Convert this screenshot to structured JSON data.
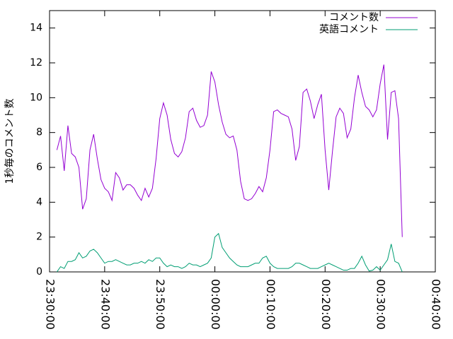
{
  "chart_data": {
    "type": "line",
    "ylabel": "1秒毎のコメント数",
    "x": [
      "23:31:20",
      "23:32:00",
      "23:32:40",
      "23:33:20",
      "23:34:00",
      "23:34:40",
      "23:35:20",
      "23:36:00",
      "23:36:40",
      "23:37:20",
      "23:38:00",
      "23:38:40",
      "23:39:20",
      "23:40:00",
      "23:40:40",
      "23:41:20",
      "23:42:00",
      "23:42:40",
      "23:43:20",
      "23:44:00",
      "23:44:40",
      "23:45:20",
      "23:46:00",
      "23:46:40",
      "23:47:20",
      "23:48:00",
      "23:48:40",
      "23:49:20",
      "23:50:00",
      "23:50:40",
      "23:51:20",
      "23:52:00",
      "23:52:40",
      "23:53:20",
      "23:54:00",
      "23:54:40",
      "23:55:20",
      "23:56:00",
      "23:56:40",
      "23:57:20",
      "23:58:00",
      "23:58:40",
      "23:59:20",
      "00:00:00",
      "00:00:40",
      "00:01:20",
      "00:02:00",
      "00:02:40",
      "00:03:20",
      "00:04:00",
      "00:04:40",
      "00:05:20",
      "00:06:00",
      "00:06:40",
      "00:07:20",
      "00:08:00",
      "00:08:40",
      "00:09:20",
      "00:10:00",
      "00:10:40",
      "00:11:20",
      "00:12:00",
      "00:12:40",
      "00:13:20",
      "00:14:00",
      "00:14:40",
      "00:15:20",
      "00:16:00",
      "00:16:40",
      "00:17:20",
      "00:18:00",
      "00:18:40",
      "00:19:20",
      "00:20:00",
      "00:20:40",
      "00:21:20",
      "00:22:00",
      "00:22:40",
      "00:23:20",
      "00:24:00",
      "00:24:40",
      "00:25:20",
      "00:26:00",
      "00:26:40",
      "00:27:20",
      "00:28:00",
      "00:28:40",
      "00:29:20",
      "00:30:00",
      "00:30:40",
      "00:31:20",
      "00:32:00",
      "00:32:40",
      "00:33:20",
      "00:34:00"
    ],
    "series": [
      {
        "name": "コメント数",
        "color": "#9400d3",
        "values": [
          7.0,
          7.8,
          5.8,
          8.4,
          6.8,
          6.6,
          6.0,
          3.6,
          4.2,
          7.0,
          7.9,
          6.5,
          5.3,
          4.8,
          4.6,
          4.1,
          5.7,
          5.4,
          4.7,
          5.0,
          5.0,
          4.8,
          4.4,
          4.1,
          4.8,
          4.3,
          4.8,
          6.5,
          8.8,
          9.7,
          9.0,
          7.6,
          6.8,
          6.6,
          6.9,
          7.7,
          9.2,
          9.4,
          8.7,
          8.3,
          8.4,
          9.0,
          11.5,
          10.9,
          9.6,
          8.6,
          7.9,
          7.7,
          7.8,
          7.0,
          5.2,
          4.2,
          4.1,
          4.2,
          4.5,
          4.9,
          4.6,
          5.4,
          7.0,
          9.2,
          9.3,
          9.1,
          9.0,
          8.9,
          8.2,
          6.4,
          7.2,
          10.3,
          10.5,
          9.8,
          8.8,
          9.6,
          10.2,
          7.0,
          4.7,
          6.9,
          8.9,
          9.4,
          9.1,
          7.7,
          8.2,
          10.0,
          11.3,
          10.3,
          9.5,
          9.3,
          8.9,
          9.3,
          10.8,
          11.9,
          7.6,
          10.3,
          10.4,
          8.8,
          2.0
        ]
      },
      {
        "name": "英語コメント",
        "color": "#009e73",
        "values": [
          0,
          0.3,
          0.2,
          0.6,
          0.6,
          0.7,
          1.1,
          0.8,
          0.9,
          1.2,
          1.3,
          1.1,
          0.8,
          0.5,
          0.6,
          0.6,
          0.7,
          0.6,
          0.5,
          0.4,
          0.4,
          0.5,
          0.5,
          0.6,
          0.5,
          0.7,
          0.6,
          0.8,
          0.8,
          0.5,
          0.3,
          0.4,
          0.3,
          0.3,
          0.2,
          0.3,
          0.5,
          0.4,
          0.4,
          0.3,
          0.4,
          0.5,
          0.8,
          2.0,
          2.2,
          1.4,
          1.1,
          0.8,
          0.6,
          0.4,
          0.3,
          0.3,
          0.3,
          0.4,
          0.5,
          0.5,
          0.8,
          0.9,
          0.5,
          0.3,
          0.2,
          0.2,
          0.2,
          0.2,
          0.3,
          0.5,
          0.5,
          0.4,
          0.3,
          0.2,
          0.2,
          0.2,
          0.3,
          0.4,
          0.5,
          0.4,
          0.3,
          0.2,
          0.1,
          0.1,
          0.2,
          0.2,
          0.5,
          0.9,
          0.4,
          0.05,
          0.1,
          0.3,
          0.1,
          0.4,
          0.7,
          1.6,
          0.6,
          0.5,
          0
        ]
      }
    ],
    "xlim": [
      "23:30:00",
      "00:40:00"
    ],
    "xticks": [
      "23:30:00",
      "23:40:00",
      "23:50:00",
      "00:00:00",
      "00:10:00",
      "00:20:00",
      "00:30:00",
      "00:40:00"
    ],
    "ylim": [
      0,
      15
    ],
    "yticks": [
      0,
      2,
      4,
      6,
      8,
      10,
      12,
      14
    ],
    "grid": false,
    "legend": "top-right"
  }
}
